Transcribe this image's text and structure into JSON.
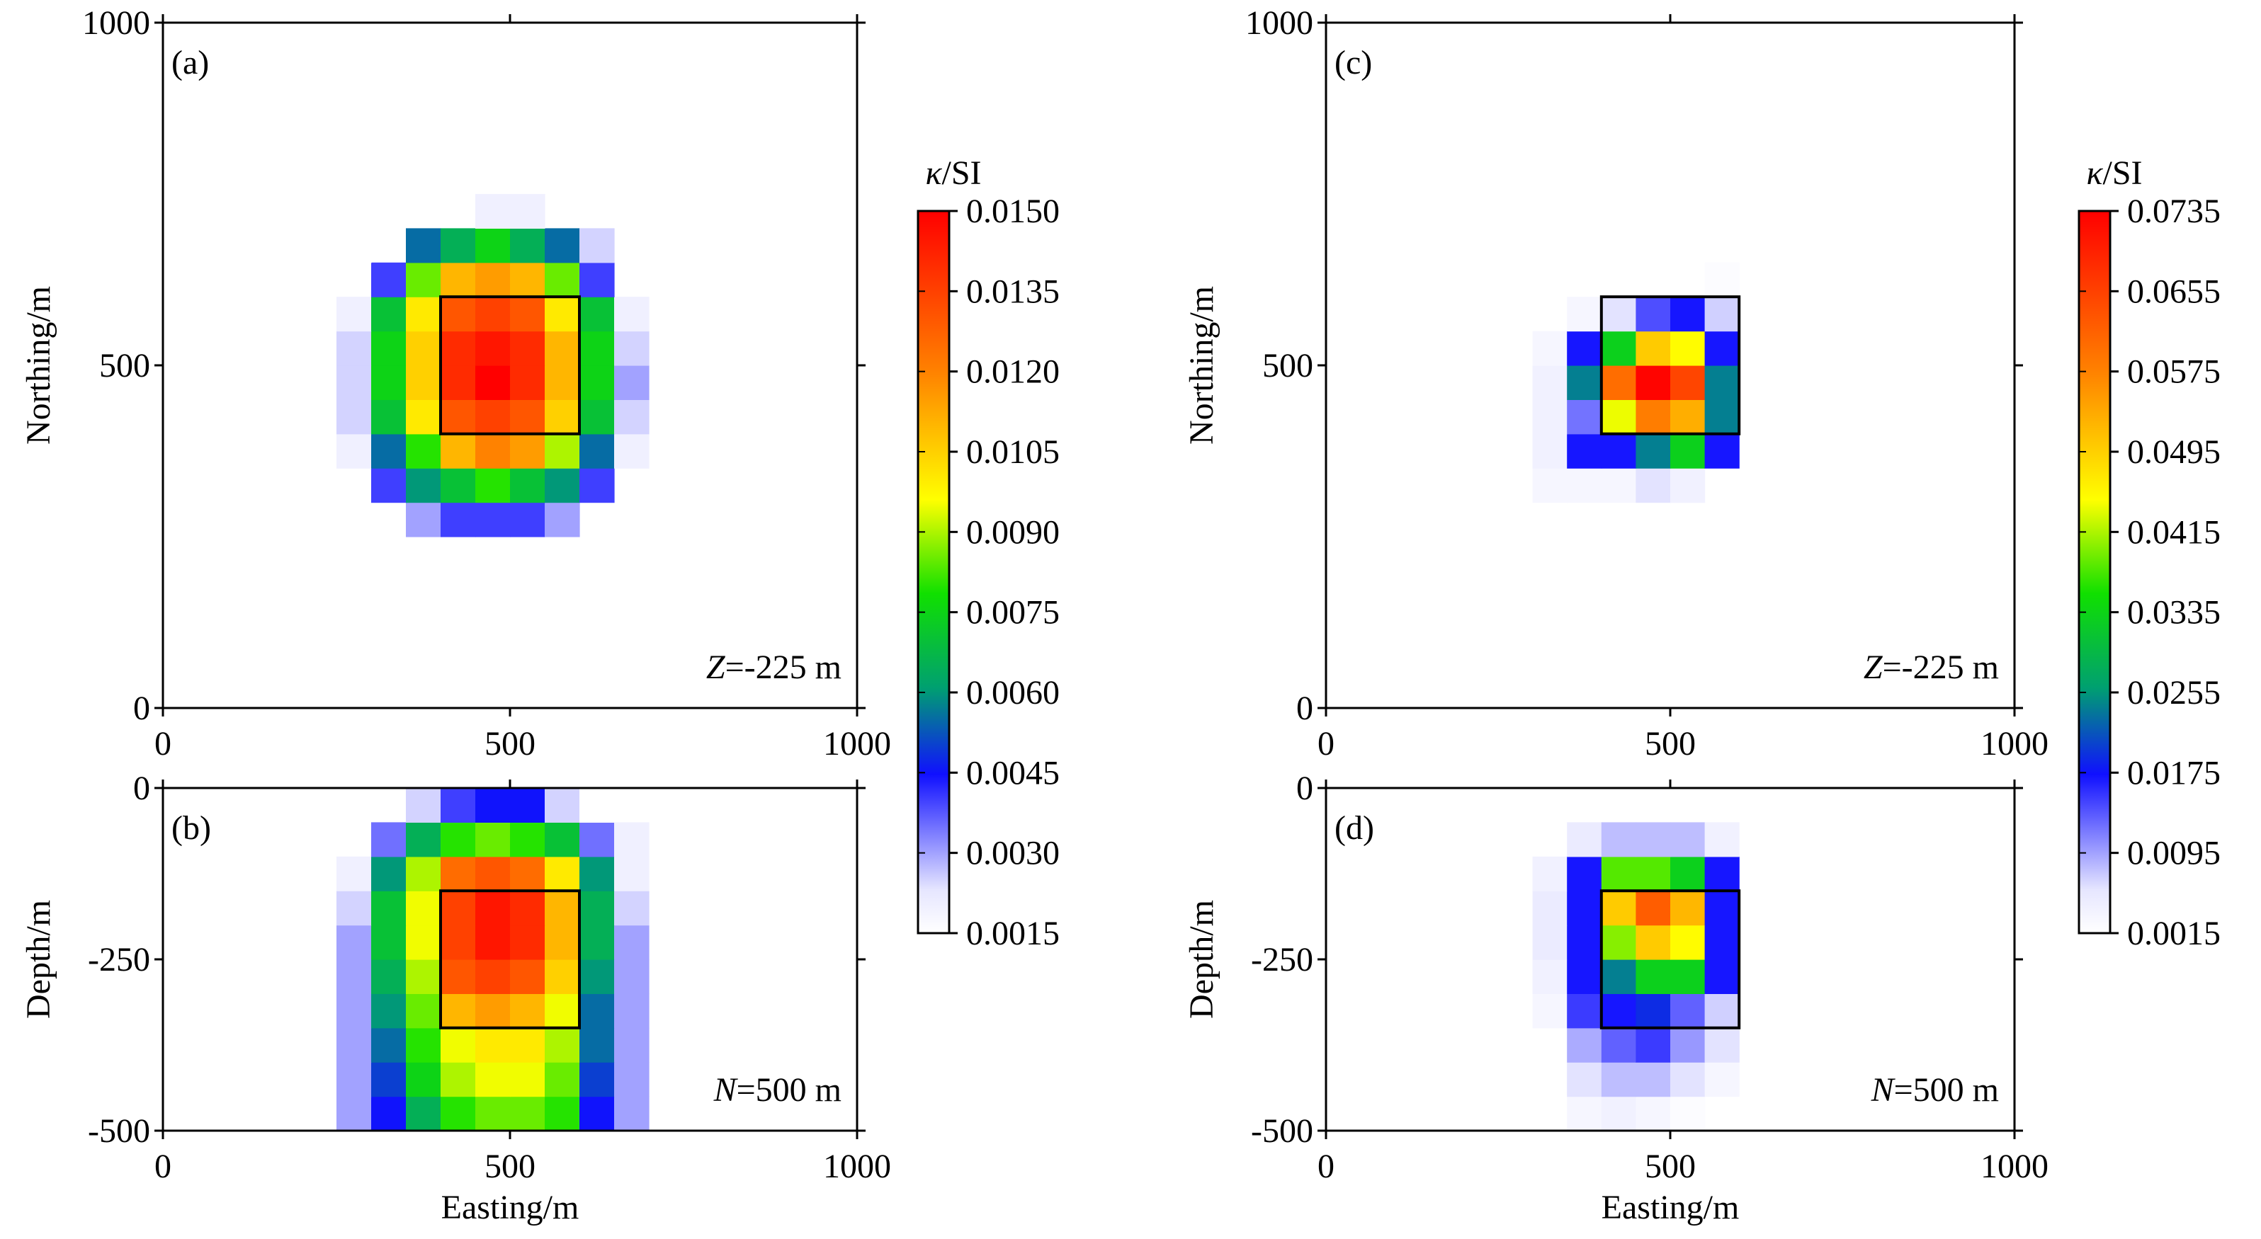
{
  "chart_data": [
    {
      "type": "heatmap",
      "panel_label": "(a)",
      "annotation": {
        "italic": "Z",
        "rest": "=-225 m"
      },
      "xlabel": "",
      "ylabel": "Northing/m",
      "xlim": [
        0,
        1000
      ],
      "ylim": [
        0,
        1000
      ],
      "xticks": [
        "0",
        "500",
        "1000"
      ],
      "yticks": [
        "0",
        "500",
        "1000"
      ],
      "xtick_values": [
        0,
        500,
        1000
      ],
      "ytick_values": [
        0,
        500,
        1000
      ],
      "x0": 250,
      "y0": 250,
      "cell": 50,
      "vmin": 0.0015,
      "vmax": 0.015,
      "body": [
        400,
        400,
        600,
        600
      ],
      "grid": [
        [
          0,
          0,
          0.003,
          0.004,
          0.004,
          0.004,
          0.003,
          0,
          0,
          0
        ],
        [
          0,
          0.004,
          0.006,
          0.007,
          0.008,
          0.007,
          0.006,
          0.004,
          0,
          0
        ],
        [
          0.002,
          0.0055,
          0.008,
          0.011,
          0.012,
          0.0115,
          0.009,
          0.0055,
          0.002,
          0
        ],
        [
          0.0025,
          0.007,
          0.01,
          0.013,
          0.0135,
          0.013,
          0.0105,
          0.007,
          0.0025,
          0
        ],
        [
          0.0025,
          0.0075,
          0.0105,
          0.014,
          0.015,
          0.014,
          0.011,
          0.0075,
          0.003,
          0
        ],
        [
          0.0025,
          0.0075,
          0.0105,
          0.014,
          0.0145,
          0.014,
          0.011,
          0.0075,
          0.0025,
          0
        ],
        [
          0.002,
          0.007,
          0.01,
          0.013,
          0.0135,
          0.013,
          0.01,
          0.007,
          0.002,
          0
        ],
        [
          0,
          0.004,
          0.0085,
          0.011,
          0.0115,
          0.011,
          0.0085,
          0.004,
          0,
          0
        ],
        [
          0.0015,
          0,
          0.0055,
          0.0065,
          0.0075,
          0.0065,
          0.0055,
          0.0025,
          0,
          0
        ],
        [
          0,
          0,
          0,
          0,
          0.002,
          0.002,
          0,
          0,
          0,
          0
        ]
      ]
    },
    {
      "type": "heatmap",
      "panel_label": "(b)",
      "annotation": {
        "italic": "N",
        "rest": "=500 m"
      },
      "xlabel": "Easting/m",
      "ylabel": "Depth/m",
      "xlim": [
        0,
        1000
      ],
      "ylim": [
        -500,
        0
      ],
      "xticks": [
        "0",
        "500",
        "1000"
      ],
      "yticks": [
        "-500",
        "-250",
        "0"
      ],
      "xtick_values": [
        0,
        500,
        1000
      ],
      "ytick_values": [
        -500,
        -250,
        0
      ],
      "x0": 250,
      "y0": -500,
      "cell": 50,
      "vmin": 0.0015,
      "vmax": 0.015,
      "body": [
        400,
        -350,
        600,
        -150
      ],
      "grid": [
        [
          0.003,
          0.0045,
          0.0065,
          0.008,
          0.0085,
          0.0085,
          0.008,
          0.0045,
          0.003,
          0
        ],
        [
          0.003,
          0.005,
          0.0075,
          0.009,
          0.0095,
          0.0095,
          0.0085,
          0.005,
          0.003,
          0
        ],
        [
          0.003,
          0.0055,
          0.008,
          0.0095,
          0.01,
          0.01,
          0.009,
          0.0055,
          0.003,
          0
        ],
        [
          0.003,
          0.006,
          0.0085,
          0.011,
          0.0115,
          0.011,
          0.0095,
          0.0055,
          0.003,
          0
        ],
        [
          0.003,
          0.0065,
          0.009,
          0.013,
          0.0135,
          0.013,
          0.0105,
          0.006,
          0.003,
          0
        ],
        [
          0.003,
          0.007,
          0.0095,
          0.0135,
          0.0145,
          0.014,
          0.011,
          0.0065,
          0.003,
          0
        ],
        [
          0.0025,
          0.007,
          0.0095,
          0.0135,
          0.0145,
          0.014,
          0.011,
          0.0065,
          0.0025,
          0
        ],
        [
          0.002,
          0.006,
          0.009,
          0.0125,
          0.013,
          0.0125,
          0.01,
          0.006,
          0.002,
          0
        ],
        [
          0,
          0.0035,
          0.0065,
          0.008,
          0.0085,
          0.008,
          0.007,
          0.0035,
          0.002,
          0
        ],
        [
          0,
          0,
          0.0025,
          0.004,
          0.0045,
          0.0045,
          0.0025,
          0.0015,
          0,
          0
        ]
      ]
    },
    {
      "type": "heatmap",
      "panel_label": "(c)",
      "annotation": {
        "italic": "Z",
        "rest": "=-225 m"
      },
      "xlabel": "",
      "ylabel": "Northing/m",
      "xlim": [
        0,
        1000
      ],
      "ylim": [
        0,
        1000
      ],
      "xticks": [
        "0",
        "500",
        "1000"
      ],
      "yticks": [
        "0",
        "500",
        "1000"
      ],
      "xtick_values": [
        0,
        500,
        1000
      ],
      "ytick_values": [
        0,
        500,
        1000
      ],
      "x0": 300,
      "y0": 300,
      "cell": 50,
      "vmin": 0.0015,
      "vmax": 0.0735,
      "body": [
        400,
        400,
        600,
        600
      ],
      "grid": [
        [
          0.003,
          0.003,
          0.003,
          0.006,
          0.004,
          0
        ],
        [
          0.004,
          0.017,
          0.017,
          0.024,
          0.033,
          0.017
        ],
        [
          0.004,
          0.012,
          0.044,
          0.058,
          0.053,
          0.024
        ],
        [
          0.004,
          0.024,
          0.06,
          0.073,
          0.065,
          0.024
        ],
        [
          0.003,
          0.017,
          0.033,
          0.05,
          0.045,
          0.017
        ],
        [
          0,
          0.003,
          0.006,
          0.014,
          0.017,
          0.007
        ],
        [
          0,
          0,
          0,
          0,
          0,
          0.002
        ]
      ]
    },
    {
      "type": "heatmap",
      "panel_label": "(d)",
      "annotation": {
        "italic": "N",
        "rest": "=500 m"
      },
      "xlabel": "Easting/m",
      "ylabel": "Depth/m",
      "xlim": [
        0,
        1000
      ],
      "ylim": [
        -500,
        0
      ],
      "xticks": [
        "0",
        "500",
        "1000"
      ],
      "yticks": [
        "-500",
        "-250",
        "0"
      ],
      "xtick_values": [
        0,
        500,
        1000
      ],
      "ytick_values": [
        -500,
        -250,
        0
      ],
      "x0": 300,
      "y0": -500,
      "cell": 50,
      "vmin": 0.0015,
      "vmax": 0.0735,
      "body": [
        400,
        -350,
        600,
        -150
      ],
      "grid": [
        [
          0,
          0.003,
          0.004,
          0.003,
          0.002,
          0
        ],
        [
          0,
          0.006,
          0.008,
          0.008,
          0.006,
          0.003
        ],
        [
          0,
          0.009,
          0.013,
          0.015,
          0.01,
          0.006
        ],
        [
          0.003,
          0.015,
          0.017,
          0.019,
          0.013,
          0.007
        ],
        [
          0.004,
          0.017,
          0.024,
          0.033,
          0.033,
          0.017
        ],
        [
          0.005,
          0.017,
          0.04,
          0.05,
          0.045,
          0.017
        ],
        [
          0.005,
          0.017,
          0.05,
          0.062,
          0.052,
          0.017
        ],
        [
          0.004,
          0.017,
          0.038,
          0.038,
          0.033,
          0.017
        ],
        [
          0,
          0.005,
          0.008,
          0.008,
          0.008,
          0.004
        ],
        [
          0,
          0,
          0,
          0,
          0,
          0
        ]
      ]
    }
  ],
  "colorbars": [
    {
      "title_italic": "κ",
      "title_rest": "/SI",
      "ticks": [
        "0.0015",
        "0.0030",
        "0.0045",
        "0.0060",
        "0.0075",
        "0.0090",
        "0.0105",
        "0.0120",
        "0.0135",
        "0.0150"
      ]
    },
    {
      "title_italic": "κ",
      "title_rest": "/SI",
      "ticks": [
        "0.0015",
        "0.0095",
        "0.0175",
        "0.0255",
        "0.0335",
        "0.0415",
        "0.0495",
        "0.0575",
        "0.0655",
        "0.0735"
      ]
    }
  ],
  "colormap": [
    "#ffffff",
    "#0000ff",
    "#00a000",
    "#ffff00",
    "#ff8000",
    "#ff0000"
  ]
}
